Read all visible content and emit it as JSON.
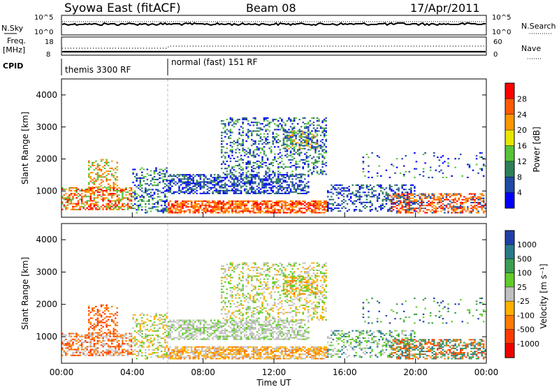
{
  "header": {
    "station": "Syowa East (fitACF)",
    "beam": "Beam 08",
    "date": "17/Apr/2011"
  },
  "noise_panel": {
    "left_label": "N.Sky",
    "left_ticks": [
      "10^5",
      "10^0"
    ],
    "right_ticks": [
      "10^5",
      "10^0"
    ],
    "right_label": "N.Search"
  },
  "freq_panel": {
    "left_label_1": "Freq.",
    "left_label_2": "[MHz]",
    "left_ticks": [
      "18",
      "8"
    ],
    "right_ticks": [
      "60",
      "0"
    ],
    "right_label": "Nave"
  },
  "cpid_panel": {
    "label": "CPID",
    "segment_1": "themis 3300 RF",
    "segment_2": "normal (fast) 151 RF"
  },
  "colors": {
    "power": [
      "#0000ff",
      "#1f4aa6",
      "#2e7f5a",
      "#56c33a",
      "#e8e600",
      "#ff9600",
      "#ff5a00",
      "#ff0000"
    ],
    "velocity": [
      "#1f3fa8",
      "#2a7a8c",
      "#3c9e52",
      "#62cc2a",
      "#c0c0c0",
      "#ffb000",
      "#ff7a00",
      "#ff3a00",
      "#ee0000"
    ]
  },
  "chart_data": [
    {
      "type": "heatmap",
      "panel": "power",
      "ylabel": "Slant Range [km]",
      "yticks": [
        "4000",
        "3000",
        "2000",
        "1000"
      ],
      "ylim": [
        180,
        4500
      ],
      "xlim_hours": [
        0,
        24
      ],
      "colorbar_label": "Power [dB]",
      "colorbar_ticks": [
        "28",
        "24",
        "20",
        "16",
        "12",
        "8",
        "4"
      ],
      "colorbar_range": [
        0,
        32
      ]
    },
    {
      "type": "heatmap",
      "panel": "velocity",
      "ylabel": "Slant Range [km]",
      "yticks": [
        "4000",
        "3000",
        "2000",
        "1000"
      ],
      "ylim": [
        180,
        4500
      ],
      "xlim_hours": [
        0,
        24
      ],
      "xlabel": "Time UT",
      "xticks": [
        "00:00",
        "04:00",
        "08:00",
        "12:00",
        "16:00",
        "20:00",
        "00:00"
      ],
      "colorbar_label": "Velocity [m s⁻¹]",
      "colorbar_ticks": [
        "1000",
        "500",
        "100",
        "25",
        "-25",
        "-100",
        "-500",
        "-1000"
      ]
    }
  ]
}
